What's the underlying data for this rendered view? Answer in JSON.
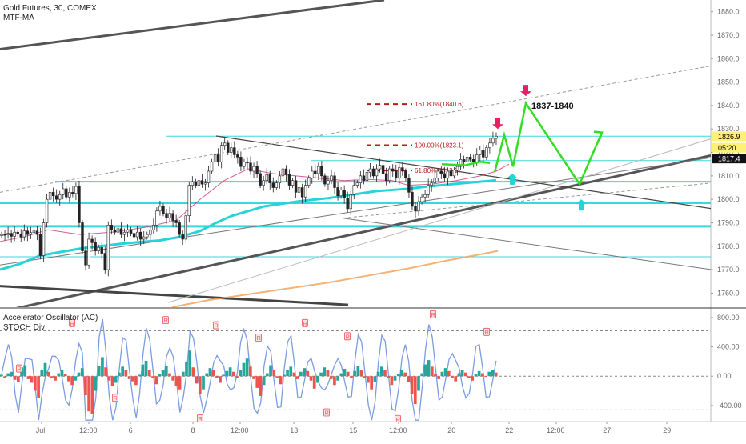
{
  "header": {
    "symbol_line": "Gold Futures, 30, COMEX",
    "indicator": "MTF-MA"
  },
  "lower_pane": {
    "line1": "Accelerator Oscillator (AC)",
    "line2": "STOCH Div"
  },
  "colors": {
    "bull": "#26a69a",
    "bear": "#ef5350",
    "cyan": "#26d3d8",
    "green_projection": "#33dd22",
    "magenta_arrow": "#e91e63",
    "fib": "#b71c1c",
    "orange_ma": "#f0a560",
    "stoch": "#7b9ce0"
  },
  "chart_data": [
    {
      "type": "candlestick",
      "title": "Gold Futures, 30, COMEX",
      "yaxis": {
        "side": "right",
        "range": [
          1754,
          1885
        ],
        "ticks": [
          1760,
          1770,
          1780,
          1790,
          1800,
          1810,
          1820,
          1830,
          1840,
          1850,
          1860,
          1870,
          1880
        ],
        "tick_labels": [
          "1760.0",
          "1770.0",
          "1780.0",
          "1790.0",
          "1800.0",
          "1810.0",
          "1820.0",
          "1830.0",
          "1840.0",
          "1850.0",
          "1860.0",
          "1870.0",
          "1880.0"
        ]
      },
      "xaxis": {
        "tick_labels": [
          "Jul",
          "12:00",
          "6",
          "8",
          "12:00",
          "13",
          "15",
          "12:00",
          "20",
          "22",
          "12:00",
          "27",
          "29"
        ]
      },
      "price_labels": [
        {
          "label": "1826.9",
          "value": 1826.9,
          "bg": "#fff176",
          "fg": "#000000"
        },
        {
          "label": "05:20",
          "value": 1822.0,
          "bg": "#fff176",
          "fg": "#000000"
        },
        {
          "label": "1817.4",
          "value": 1817.4,
          "bg": "#111111",
          "fg": "#ffffff"
        }
      ],
      "fib_levels": [
        {
          "label": "161.80%(1840.6)",
          "value": 1840.6
        },
        {
          "label": "100.00%(1823.1)",
          "value": 1823.1
        },
        {
          "label": "61.80%(1812.3)",
          "value": 1812.3
        }
      ],
      "annotation": {
        "text": "1837-1840"
      },
      "horizontal_levels": [
        1826.9,
        1816.5,
        1807.5,
        1798.5,
        1788.5,
        1775.5
      ],
      "close_series": [
        1785.0,
        1784.8,
        1785.5,
        1784.2,
        1786.0,
        1785.3,
        1784.0,
        1786.5,
        1785.0,
        1785.8,
        1786.5,
        1785.0,
        1776.0,
        1790.0,
        1800.0,
        1803.0,
        1801.5,
        1800.0,
        1802.0,
        1804.5,
        1801.0,
        1803.0,
        1802.5,
        1805.5,
        1790.0,
        1778.0,
        1772.0,
        1783.0,
        1781.5,
        1778.0,
        1779.5,
        1777.0,
        1770.0,
        1789.0,
        1787.0,
        1786.0,
        1787.5,
        1785.0,
        1786.0,
        1787.0,
        1785.5,
        1784.0,
        1786.0,
        1783.0,
        1784.0,
        1785.0,
        1787.0,
        1789.0,
        1795.0,
        1797.0,
        1794.0,
        1792.0,
        1794.0,
        1791.0,
        1790.0,
        1785.0,
        1783.0,
        1793.0,
        1806.0,
        1807.5,
        1806.0,
        1808.0,
        1806.5,
        1807.0,
        1812.0,
        1816.0,
        1819.0,
        1816.0,
        1823.0,
        1824.0,
        1820.0,
        1822.0,
        1819.0,
        1818.0,
        1814.0,
        1816.0,
        1815.5,
        1812.0,
        1814.0,
        1811.0,
        1806.0,
        1808.0,
        1810.5,
        1807.0,
        1805.0,
        1807.0,
        1810.0,
        1813.0,
        1810.5,
        1806.0,
        1808.0,
        1803.0,
        1805.0,
        1801.0,
        1806.0,
        1809.0,
        1812.0,
        1811.0,
        1814.0,
        1810.0,
        1806.5,
        1808.0,
        1810.0,
        1805.0,
        1801.5,
        1804.0,
        1800.5,
        1796.0,
        1802.0,
        1806.0,
        1807.0,
        1810.0,
        1808.0,
        1811.5,
        1813.0,
        1810.0,
        1813.0,
        1814.5,
        1811.0,
        1808.0,
        1813.0,
        1812.0,
        1809.0,
        1813.5,
        1812.0,
        1809.0,
        1803.0,
        1797.0,
        1795.0,
        1799.0,
        1801.0,
        1802.0,
        1806.0,
        1807.0,
        1809.0,
        1812.0,
        1811.0,
        1809.0,
        1812.0,
        1810.0,
        1812.5,
        1814.0,
        1817.0,
        1816.0,
        1818.0,
        1817.0,
        1816.0,
        1819.0,
        1821.0,
        1818.0,
        1822.0,
        1824.0,
        1826.0,
        1826.9
      ],
      "mtf_ma_cyan": [
        [
          0,
          1770
        ],
        [
          25,
          1772.5
        ],
        [
          50,
          1776
        ],
        [
          75,
          1777.5
        ],
        [
          100,
          1779
        ],
        [
          125,
          1780
        ],
        [
          150,
          1781
        ],
        [
          175,
          1781.8
        ],
        [
          200,
          1782.5
        ],
        [
          225,
          1784
        ],
        [
          250,
          1786.5
        ],
        [
          270,
          1790
        ],
        [
          290,
          1793
        ],
        [
          310,
          1795
        ],
        [
          330,
          1797
        ],
        [
          350,
          1798
        ],
        [
          370,
          1799
        ],
        [
          390,
          1799.8
        ],
        [
          410,
          1800.5
        ],
        [
          430,
          1801.5
        ],
        [
          450,
          1802.5
        ],
        [
          470,
          1803.5
        ],
        [
          490,
          1804
        ],
        [
          510,
          1804.5
        ],
        [
          530,
          1805.3
        ],
        [
          550,
          1806
        ],
        [
          570,
          1806.6
        ],
        [
          590,
          1807.2
        ],
        [
          610,
          1807.8
        ],
        [
          620,
          1808.1
        ]
      ],
      "mtf_ma_purple": [
        [
          0,
          1782
        ],
        [
          30,
          1784
        ],
        [
          60,
          1787
        ],
        [
          100,
          1785
        ],
        [
          140,
          1786
        ],
        [
          180,
          1788
        ],
        [
          220,
          1791
        ],
        [
          250,
          1800
        ],
        [
          280,
          1808
        ],
        [
          310,
          1813
        ],
        [
          340,
          1811
        ],
        [
          370,
          1810
        ],
        [
          400,
          1809
        ],
        [
          430,
          1808
        ],
        [
          460,
          1808.5
        ],
        [
          490,
          1808
        ],
        [
          510,
          1806
        ],
        [
          540,
          1806.5
        ],
        [
          570,
          1808
        ],
        [
          600,
          1810
        ],
        [
          620,
          1812
        ],
        [
          636,
          1815
        ]
      ],
      "mtf_ma_orange": [
        [
          215,
          1754
        ],
        [
          260,
          1757
        ],
        [
          310,
          1759.5
        ],
        [
          360,
          1762
        ],
        [
          410,
          1764.5
        ],
        [
          460,
          1767.5
        ],
        [
          510,
          1770.5
        ],
        [
          560,
          1774
        ],
        [
          600,
          1776.5
        ],
        [
          622,
          1778
        ]
      ],
      "projection_path": [
        [
          618,
          1811.5
        ],
        [
          630,
          1827.5
        ],
        [
          641,
          1814
        ],
        [
          657,
          1841
        ],
        [
          724,
          1806.5
        ],
        [
          752,
          1828.5
        ]
      ],
      "projection_segments": [
        [
          [
            552,
            1815
          ],
          [
            581,
            1814.5
          ],
          [
            600,
            1816
          ],
          [
            612,
            1815.5
          ]
        ]
      ],
      "arrows": [
        {
          "kind": "down",
          "color": "magenta",
          "at": [
            622,
            1830
          ]
        },
        {
          "kind": "down",
          "color": "magenta",
          "at": [
            657,
            1844
          ]
        },
        {
          "kind": "up",
          "color": "cyan",
          "at": [
            640,
            1811
          ]
        },
        {
          "kind": "up",
          "color": "cyan",
          "at": [
            726,
            1800
          ]
        }
      ]
    },
    {
      "type": "bar",
      "title": "Accelerator Oscillator (AC)",
      "yaxis": {
        "side": "right",
        "range": [
          -620,
          920
        ],
        "ticks": [
          800,
          400,
          0,
          -400
        ],
        "tick_labels": [
          "800.00",
          "400.00",
          "0.00",
          "-400.00"
        ]
      },
      "dashed_levels": [
        620,
        -460
      ],
      "ac_values": [
        20,
        -30,
        40,
        60,
        -50,
        -80,
        120,
        150,
        -40,
        -90,
        -200,
        -300,
        80,
        180,
        60,
        -20,
        -60,
        40,
        90,
        30,
        -70,
        -120,
        -60,
        50,
        110,
        -260,
        -480,
        -520,
        -200,
        140,
        260,
        120,
        -60,
        -140,
        -90,
        50,
        130,
        80,
        -40,
        -70,
        -120,
        20,
        160,
        210,
        90,
        -30,
        -110,
        30,
        90,
        140,
        40,
        -60,
        -130,
        -180,
        60,
        200,
        350,
        120,
        -100,
        -240,
        -180,
        40,
        110,
        80,
        -30,
        -90,
        20,
        70,
        120,
        60,
        -20,
        80,
        180,
        240,
        130,
        -40,
        -160,
        -270,
        -120,
        40,
        150,
        90,
        -30,
        -110,
        20,
        80,
        130,
        50,
        -40,
        60,
        110,
        70,
        -60,
        -170,
        -90,
        50,
        120,
        80,
        -40,
        -120,
        -60,
        40,
        100,
        60,
        -30,
        70,
        140,
        80,
        -20,
        -90,
        -180,
        -80,
        60,
        130,
        90,
        -30,
        -120,
        -60,
        30,
        90,
        50,
        -80,
        -240,
        -380,
        -200,
        40,
        160,
        220,
        130,
        30,
        -40,
        60,
        110,
        70,
        -30,
        -70,
        40,
        80,
        50,
        -20,
        -60,
        30,
        70,
        40,
        -10,
        60,
        90,
        50
      ],
      "stoch_dots": [
        {
          "label": "R",
          "x": 90,
          "value": 720
        },
        {
          "label": "R",
          "x": 207,
          "value": 760
        },
        {
          "label": "R",
          "x": 270,
          "value": 690
        },
        {
          "label": "R",
          "x": 323,
          "value": 520
        },
        {
          "label": "R",
          "x": 381,
          "value": 720
        },
        {
          "label": "R",
          "x": 434,
          "value": 540
        },
        {
          "label": "R",
          "x": 541,
          "value": 840
        },
        {
          "label": "R",
          "x": 608,
          "value": 600
        },
        {
          "label": "R",
          "x": 24,
          "value": 100
        },
        {
          "label": "R",
          "x": 144,
          "value": -300
        },
        {
          "label": "R",
          "x": 250,
          "value": -580
        },
        {
          "label": "R",
          "x": 408,
          "value": -500
        },
        {
          "label": "R",
          "x": 497,
          "value": -590
        }
      ]
    }
  ]
}
